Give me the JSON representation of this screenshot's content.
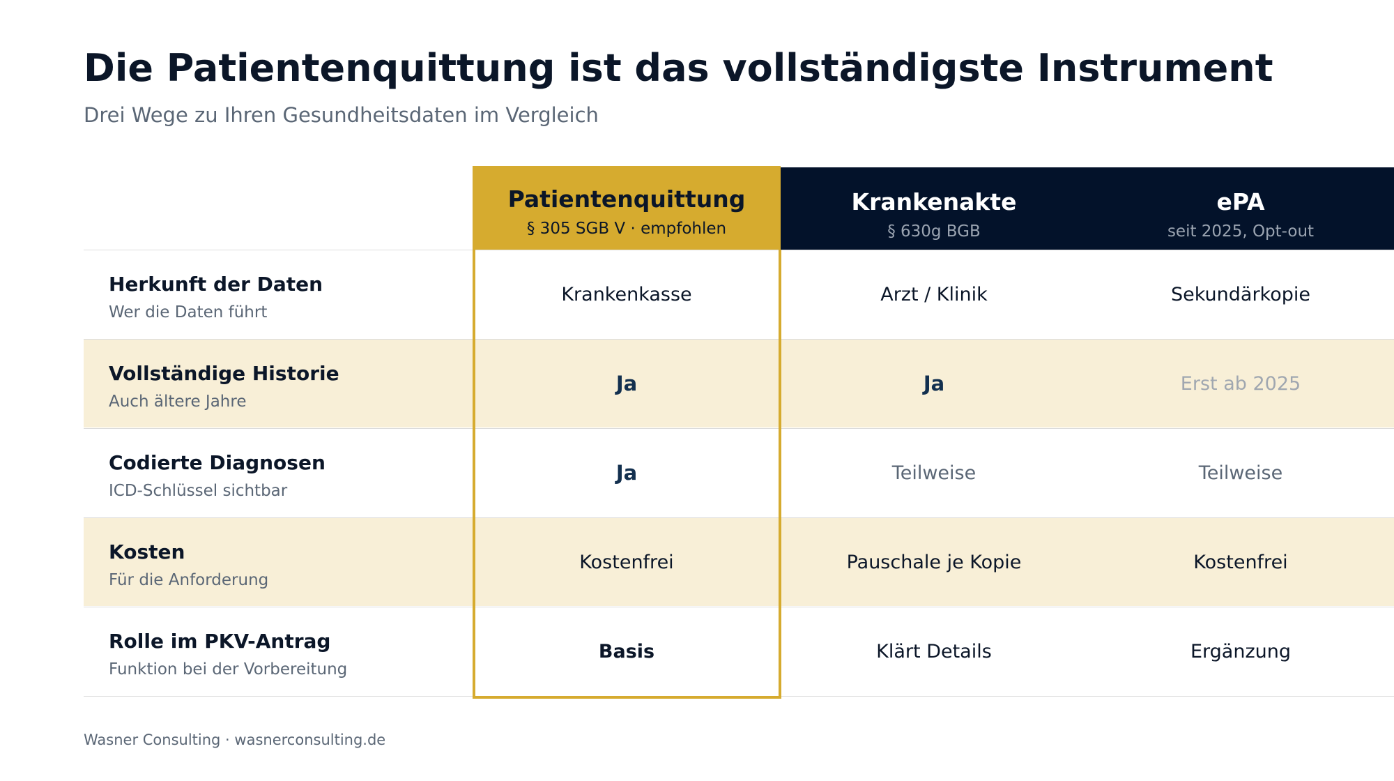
{
  "title": "Die Patientenquittung ist das vollständigste Instrument",
  "subtitle": "Drei Wege zu Ihren Gesundheitsdaten im Vergleich",
  "columns": [
    {
      "title": "Patientenquittung",
      "sub": "§ 305 SGB V · empfohlen",
      "recommended": true
    },
    {
      "title": "Krankenakte",
      "sub": "§ 630g BGB",
      "recommended": false
    },
    {
      "title": "ePA",
      "sub": "seit 2025, Opt-out",
      "recommended": false
    }
  ],
  "rows": [
    {
      "label": "Herkunft der Daten",
      "sub": "Wer die Daten führt",
      "values": [
        "Krankenkasse",
        "Arzt / Klinik",
        "Sekundärkopie"
      ]
    },
    {
      "label": "Vollständige Historie",
      "sub": "Auch ältere Jahre",
      "values": [
        "Ja",
        "Ja",
        "Erst ab 2025"
      ]
    },
    {
      "label": "Codierte Diagnosen",
      "sub": "ICD-Schlüssel sichtbar",
      "values": [
        "Ja",
        "Teilweise",
        "Teilweise"
      ]
    },
    {
      "label": "Kosten",
      "sub": "Für die Anforderung",
      "values": [
        "Kostenfrei",
        "Pauschale je Kopie",
        "Kostenfrei"
      ]
    },
    {
      "label": "Rolle im PKV-Antrag",
      "sub": "Funktion bei der Vorbereitung",
      "values": [
        "Basis",
        "Klärt Details",
        "Ergänzung"
      ]
    }
  ],
  "footer": "Wasner Consulting · wasnerconsulting.de",
  "colors": {
    "accent": "#d6ab2f",
    "navy": "#03122a",
    "row_shade": "#f8efd7"
  }
}
